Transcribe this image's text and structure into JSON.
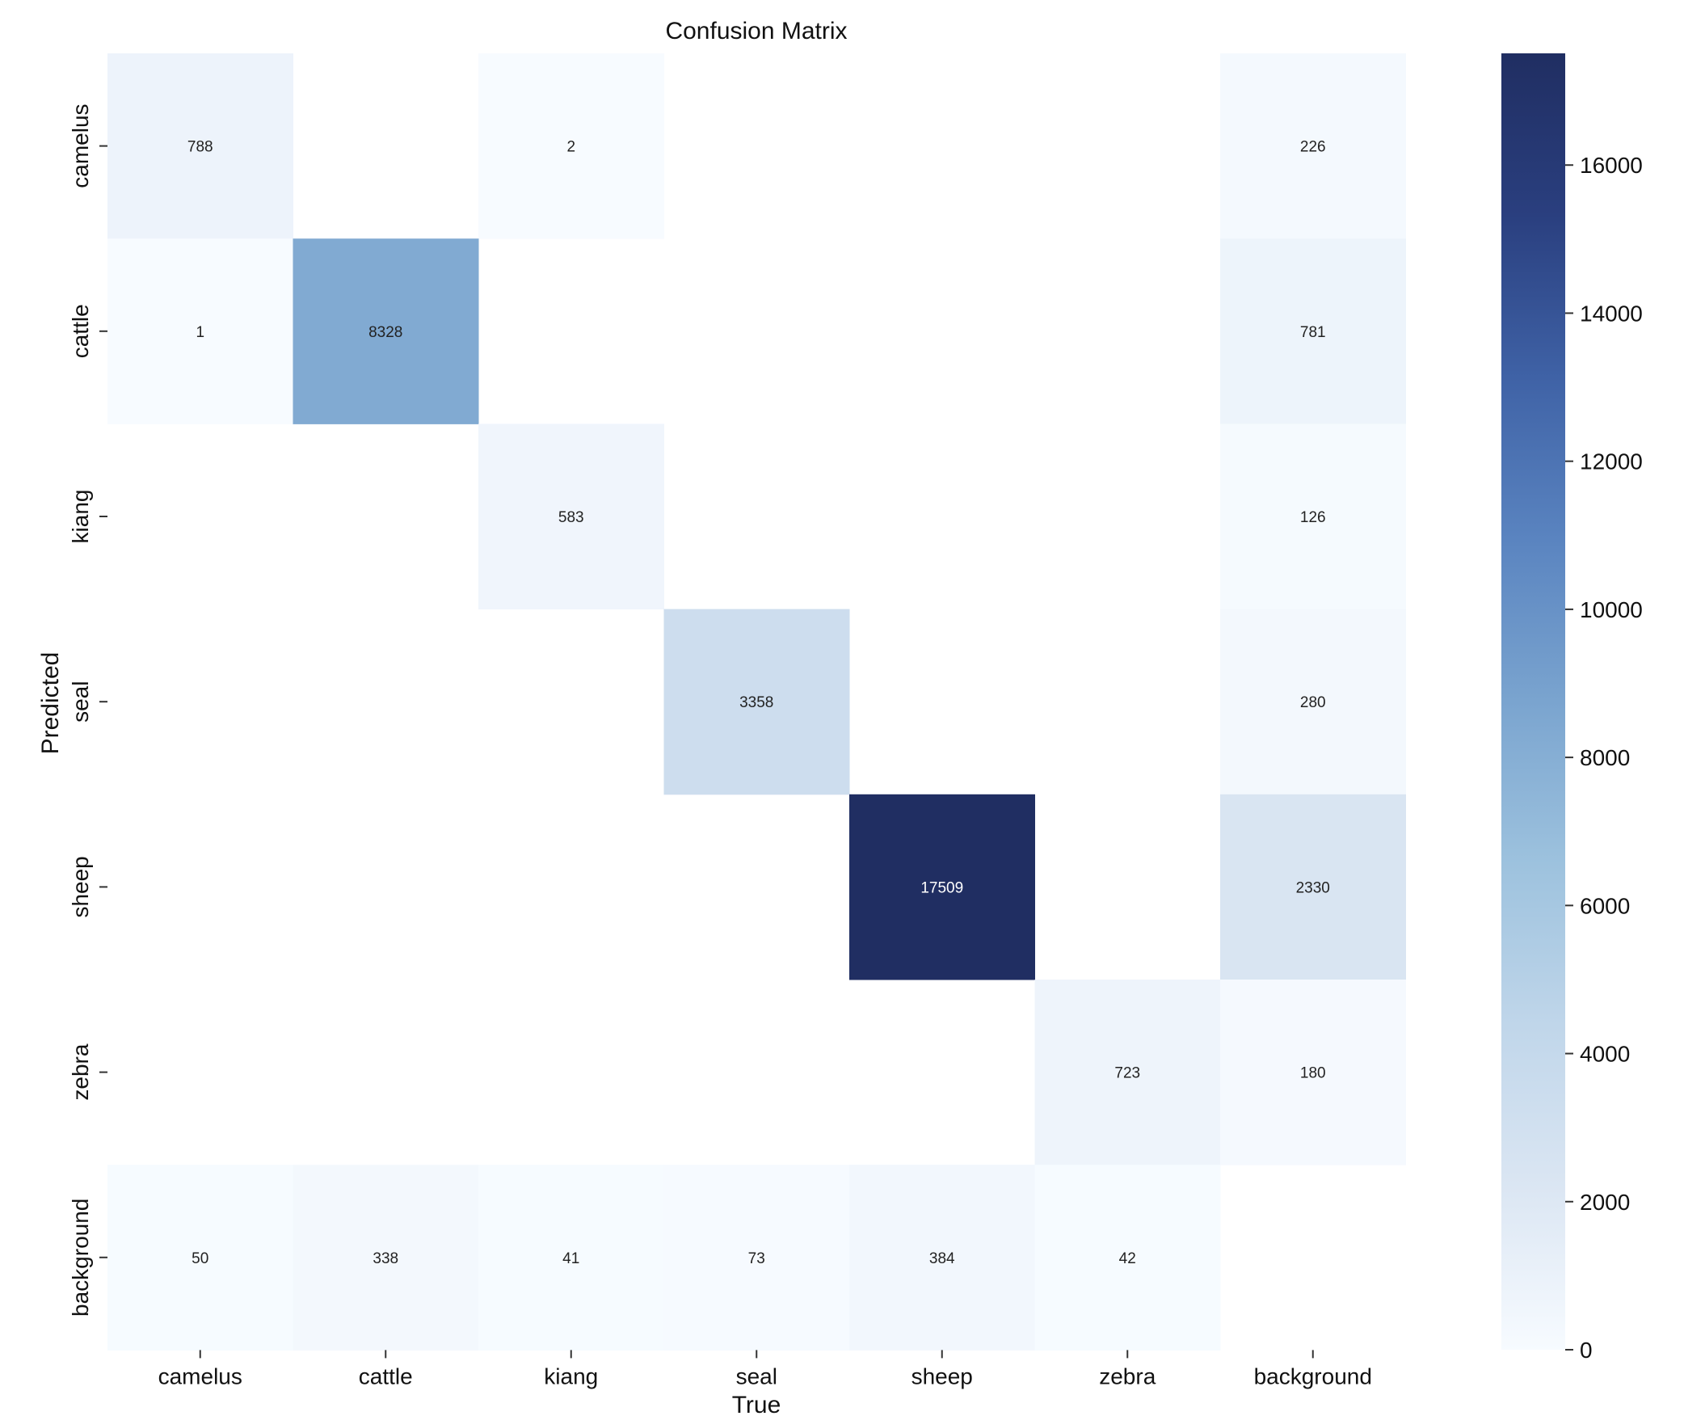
{
  "chart_data": {
    "type": "heatmap",
    "title": "Confusion Matrix",
    "xlabel": "True",
    "ylabel": "Predicted",
    "x_categories": [
      "camelus",
      "cattle",
      "kiang",
      "seal",
      "sheep",
      "zebra",
      "background"
    ],
    "y_categories": [
      "camelus",
      "cattle",
      "kiang",
      "seal",
      "sheep",
      "zebra",
      "background"
    ],
    "values": [
      [
        788,
        0,
        2,
        0,
        0,
        0,
        226
      ],
      [
        1,
        8328,
        0,
        0,
        0,
        0,
        781
      ],
      [
        0,
        0,
        583,
        0,
        0,
        0,
        126
      ],
      [
        0,
        0,
        0,
        3358,
        0,
        0,
        280
      ],
      [
        0,
        0,
        0,
        0,
        17509,
        0,
        2330
      ],
      [
        0,
        0,
        0,
        0,
        0,
        723,
        180
      ],
      [
        50,
        338,
        41,
        73,
        384,
        42,
        0
      ]
    ],
    "hide_zero_cells": true,
    "colorbar": {
      "min": 0,
      "max": 17509,
      "ticks": [
        0,
        2000,
        4000,
        6000,
        8000,
        10000,
        12000,
        14000,
        16000
      ],
      "colormap": "Blues-to-navy",
      "colors": [
        "#f7fbff",
        "#dbe6f3",
        "#c0d6ea",
        "#9dc2de",
        "#7aa4cf",
        "#5a84c0",
        "#3f62a6",
        "#2a3f7f",
        "#202e62"
      ]
    },
    "grid": false
  }
}
